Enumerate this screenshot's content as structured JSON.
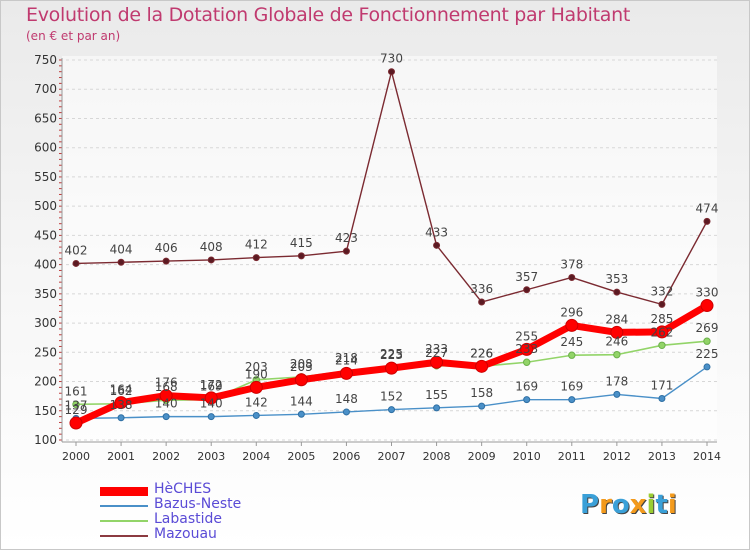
{
  "chart_data": {
    "type": "line",
    "title": "Evolution de la Dotation Globale de Fonctionnement par Habitant",
    "subtitle": "(en € et par an)",
    "xlabel": "",
    "ylabel": "",
    "ylim": [
      100,
      750
    ],
    "yticks": [
      100,
      150,
      200,
      250,
      300,
      350,
      400,
      450,
      500,
      550,
      600,
      650,
      700,
      750
    ],
    "categories": [
      "2000",
      "2001",
      "2002",
      "2003",
      "2004",
      "2005",
      "2006",
      "2007",
      "2008",
      "2009",
      "2010",
      "2011",
      "2012",
      "2013",
      "2014"
    ],
    "series": [
      {
        "name": "Mazouau",
        "color": "#7b2a31",
        "values": [
          402,
          404,
          406,
          408,
          412,
          415,
          423,
          730,
          433,
          336,
          357,
          378,
          353,
          332,
          474
        ]
      },
      {
        "name": "Bazus-Neste",
        "color": "#4a90c8",
        "values": [
          137,
          138,
          140,
          140,
          142,
          144,
          148,
          152,
          155,
          158,
          169,
          169,
          178,
          171,
          225
        ]
      },
      {
        "name": "Labastide",
        "color": "#92d468",
        "values": [
          161,
          162,
          168,
          169,
          203,
          208,
          218,
          225,
          227,
          226,
          233,
          245,
          246,
          262,
          269
        ]
      },
      {
        "name": "HèCHES",
        "color": "#ff0000",
        "values": [
          129,
          164,
          176,
          172,
          190,
          203,
          214,
          223,
          233,
          226,
          255,
          296,
          284,
          285,
          330
        ]
      }
    ],
    "label_overrides": {
      "Labastide": {
        "2010": "233",
        "2013": "262"
      }
    },
    "legend_position": "bottom-left",
    "grid": "horizontal-dashed"
  },
  "logo": {
    "letters": [
      "P",
      "r",
      "o",
      "x",
      "i",
      "t",
      "i"
    ],
    "colors": [
      "#3aa0d8",
      "#f39a1c",
      "#3aa0d8",
      "#f39a1c",
      "#9acd32",
      "#3aa0d8",
      "#f39a1c"
    ]
  }
}
